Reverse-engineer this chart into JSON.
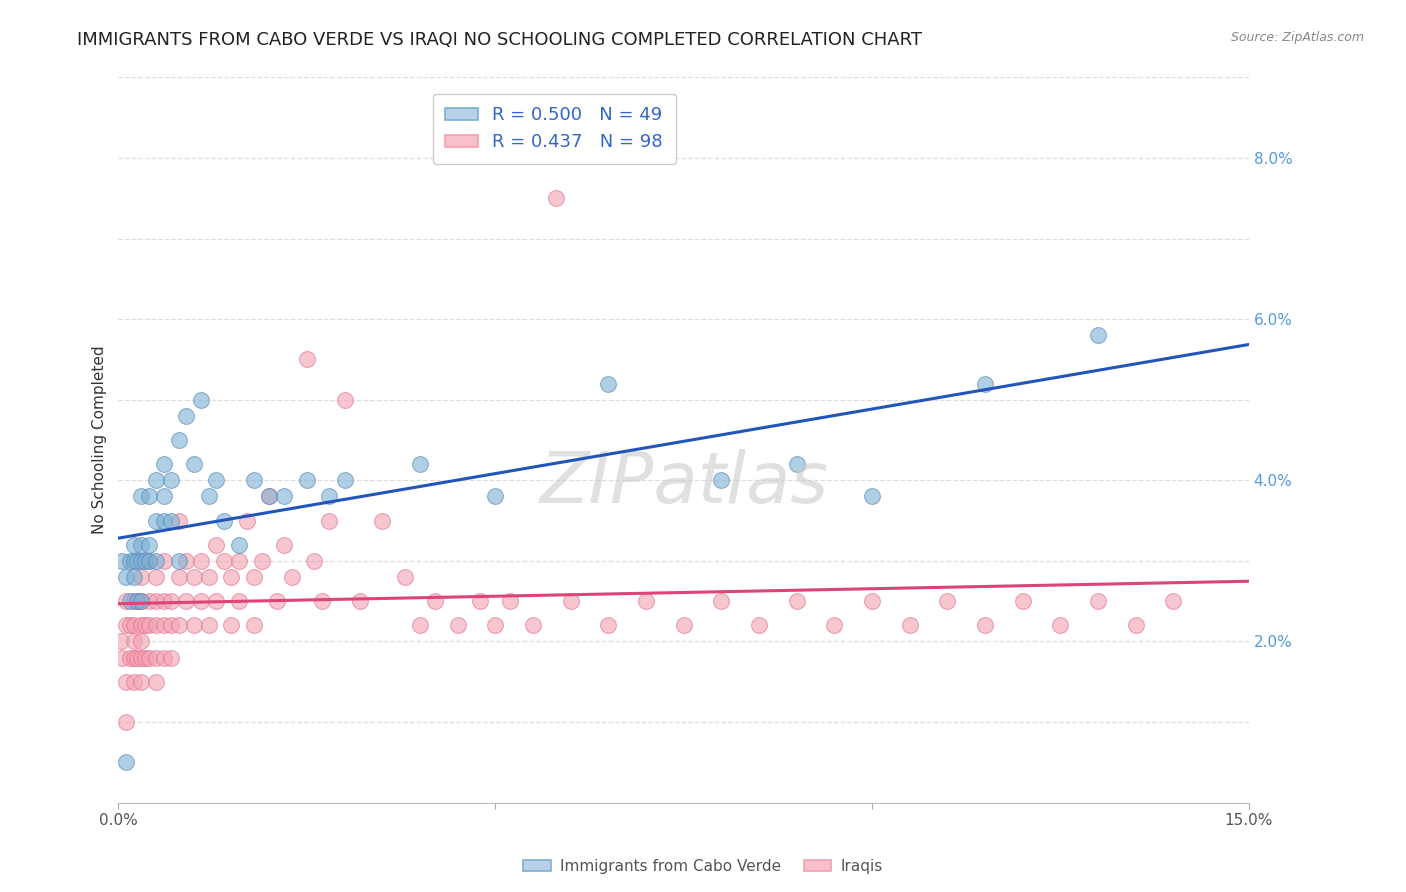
{
  "title": "IMMIGRANTS FROM CABO VERDE VS IRAQI NO SCHOOLING COMPLETED CORRELATION CHART",
  "source": "Source: ZipAtlas.com",
  "ylabel": "No Schooling Completed",
  "xlim": [
    0.0,
    0.15
  ],
  "ylim": [
    0.0,
    0.09
  ],
  "background_color": "#ffffff",
  "grid_color": "#dddddd",
  "watermark": "ZIPatlas",
  "cabo_verde": {
    "label": "Immigrants from Cabo Verde",
    "R": 0.5,
    "N": 49,
    "color": "#7bafd4",
    "x": [
      0.0005,
      0.001,
      0.001,
      0.0015,
      0.0015,
      0.002,
      0.002,
      0.002,
      0.0025,
      0.0025,
      0.003,
      0.003,
      0.003,
      0.003,
      0.0035,
      0.004,
      0.004,
      0.004,
      0.005,
      0.005,
      0.005,
      0.006,
      0.006,
      0.006,
      0.007,
      0.007,
      0.008,
      0.008,
      0.009,
      0.01,
      0.011,
      0.012,
      0.013,
      0.014,
      0.016,
      0.018,
      0.02,
      0.022,
      0.025,
      0.028,
      0.03,
      0.04,
      0.05,
      0.065,
      0.08,
      0.09,
      0.1,
      0.115,
      0.13
    ],
    "y": [
      0.03,
      0.005,
      0.028,
      0.03,
      0.025,
      0.032,
      0.028,
      0.03,
      0.025,
      0.03,
      0.032,
      0.038,
      0.03,
      0.025,
      0.03,
      0.038,
      0.032,
      0.03,
      0.04,
      0.035,
      0.03,
      0.042,
      0.038,
      0.035,
      0.04,
      0.035,
      0.045,
      0.03,
      0.048,
      0.042,
      0.05,
      0.038,
      0.04,
      0.035,
      0.032,
      0.04,
      0.038,
      0.038,
      0.04,
      0.038,
      0.04,
      0.042,
      0.038,
      0.052,
      0.04,
      0.042,
      0.038,
      0.052,
      0.058
    ]
  },
  "iraqi": {
    "label": "Iraqis",
    "R": 0.437,
    "N": 98,
    "color": "#f4a0b0",
    "x": [
      0.0003,
      0.0005,
      0.001,
      0.001,
      0.001,
      0.001,
      0.0015,
      0.0015,
      0.002,
      0.002,
      0.002,
      0.002,
      0.002,
      0.0025,
      0.0025,
      0.003,
      0.003,
      0.003,
      0.003,
      0.003,
      0.003,
      0.0035,
      0.0035,
      0.004,
      0.004,
      0.004,
      0.004,
      0.005,
      0.005,
      0.005,
      0.005,
      0.005,
      0.006,
      0.006,
      0.006,
      0.006,
      0.007,
      0.007,
      0.007,
      0.008,
      0.008,
      0.008,
      0.009,
      0.009,
      0.01,
      0.01,
      0.011,
      0.011,
      0.012,
      0.012,
      0.013,
      0.013,
      0.014,
      0.015,
      0.015,
      0.016,
      0.016,
      0.017,
      0.018,
      0.018,
      0.019,
      0.02,
      0.021,
      0.022,
      0.023,
      0.025,
      0.026,
      0.027,
      0.028,
      0.03,
      0.032,
      0.035,
      0.038,
      0.04,
      0.042,
      0.045,
      0.048,
      0.05,
      0.052,
      0.055,
      0.058,
      0.06,
      0.065,
      0.07,
      0.075,
      0.08,
      0.085,
      0.09,
      0.095,
      0.1,
      0.105,
      0.11,
      0.115,
      0.12,
      0.125,
      0.13,
      0.135,
      0.14
    ],
    "y": [
      0.02,
      0.018,
      0.022,
      0.015,
      0.01,
      0.025,
      0.018,
      0.022,
      0.02,
      0.025,
      0.018,
      0.015,
      0.022,
      0.025,
      0.018,
      0.022,
      0.018,
      0.025,
      0.02,
      0.015,
      0.028,
      0.022,
      0.018,
      0.025,
      0.022,
      0.018,
      0.03,
      0.025,
      0.022,
      0.018,
      0.028,
      0.015,
      0.025,
      0.022,
      0.018,
      0.03,
      0.025,
      0.022,
      0.018,
      0.028,
      0.022,
      0.035,
      0.025,
      0.03,
      0.028,
      0.022,
      0.03,
      0.025,
      0.028,
      0.022,
      0.032,
      0.025,
      0.03,
      0.028,
      0.022,
      0.03,
      0.025,
      0.035,
      0.028,
      0.022,
      0.03,
      0.038,
      0.025,
      0.032,
      0.028,
      0.055,
      0.03,
      0.025,
      0.035,
      0.05,
      0.025,
      0.035,
      0.028,
      0.022,
      0.025,
      0.022,
      0.025,
      0.022,
      0.025,
      0.022,
      0.075,
      0.025,
      0.022,
      0.025,
      0.022,
      0.025,
      0.022,
      0.025,
      0.022,
      0.025,
      0.022,
      0.025,
      0.022,
      0.025,
      0.022,
      0.025,
      0.022,
      0.025
    ]
  },
  "title_fontsize": 13,
  "axis_label_fontsize": 11,
  "tick_fontsize": 11,
  "legend_fontsize": 13
}
